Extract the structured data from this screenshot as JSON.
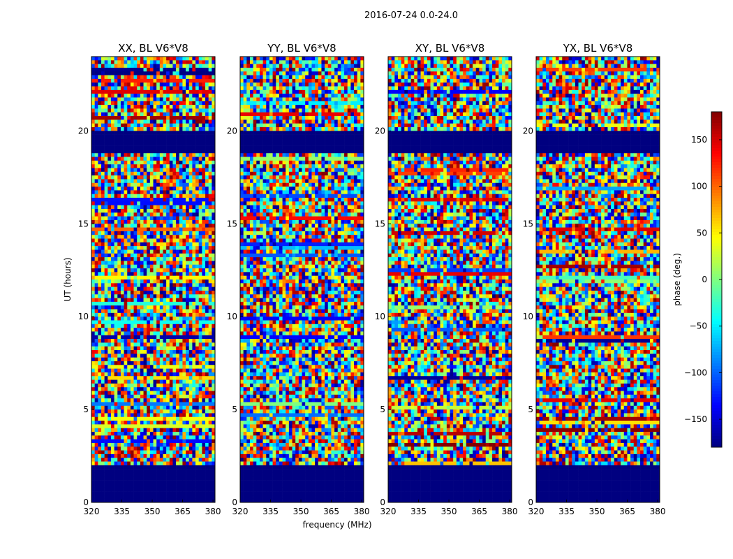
{
  "chart_data": {
    "type": "heatmap",
    "title": "2016-07-24 0.0-24.0",
    "xlabel": "frequency (MHz)",
    "ylabel": "UT (hours)",
    "colorbar_label": "phase (deg.)",
    "colormap": "jet",
    "clim": [
      -180,
      180
    ],
    "colorbar_ticks": [
      -150,
      -100,
      -50,
      0,
      50,
      100,
      150
    ],
    "xlim": [
      320,
      381
    ],
    "ylim": [
      0,
      24
    ],
    "x_ticks": [
      320,
      335,
      350,
      365,
      380
    ],
    "y_ticks": [
      0,
      5,
      10,
      15,
      20
    ],
    "panels": [
      {
        "title": "XX, BL V6*V8"
      },
      {
        "title": "YY, BL V6*V8"
      },
      {
        "title": "XY, BL V6*V8"
      },
      {
        "title": "YX, BL V6*V8"
      }
    ],
    "flagged_ut_ranges": [
      [
        0,
        2.0
      ],
      [
        18.9,
        19.9
      ]
    ],
    "notes_values": {
      "panel_grid": "1 row x 4 columns",
      "colorbar_position": "right"
    }
  }
}
